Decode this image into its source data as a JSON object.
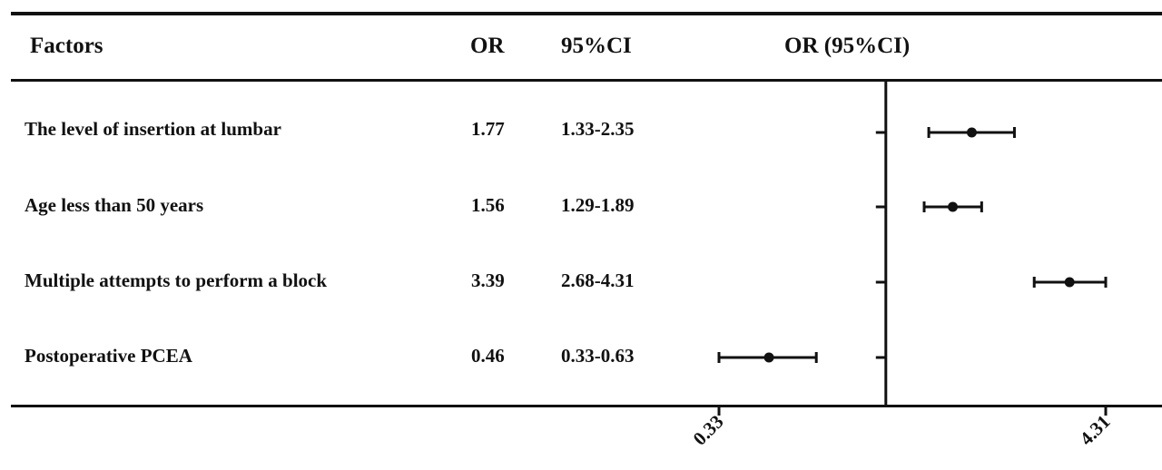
{
  "table": {
    "headers": {
      "factors": "Factors",
      "or": "OR",
      "ci": "95%CI",
      "plot": "OR (95%CI)"
    },
    "rows": [
      {
        "factor": "The level of insertion at lumbar",
        "or": "1.77",
        "ci": "1.33-2.35"
      },
      {
        "factor": "Age less than 50 years",
        "or": "1.56",
        "ci": "1.29-1.89"
      },
      {
        "factor": "Multiple attempts to perform a block",
        "or": "3.39",
        "ci": "2.68-4.31"
      },
      {
        "factor": "Postoperative PCEA",
        "or": "0.46",
        "ci": "0.33-0.63"
      }
    ]
  },
  "chart_data": {
    "type": "scatter",
    "subtype": "forest-plot",
    "title": "OR (95%CI)",
    "xlabel": "",
    "ylabel": "",
    "x_scale": "log",
    "xlim": [
      0.33,
      4.31
    ],
    "xticks": [
      "0.33",
      "4.31"
    ],
    "reference_line_x": 1,
    "grid": false,
    "categories": [
      "The level of insertion at lumbar",
      "Age less than 50 years",
      "Multiple attempts to perform a block",
      "Postoperative PCEA"
    ],
    "series": [
      {
        "estimate": [
          1.77,
          1.56,
          3.39,
          0.46
        ],
        "ci_low": [
          1.33,
          1.29,
          2.68,
          0.33
        ],
        "ci_high": [
          2.35,
          1.89,
          4.31,
          0.63
        ]
      }
    ]
  }
}
